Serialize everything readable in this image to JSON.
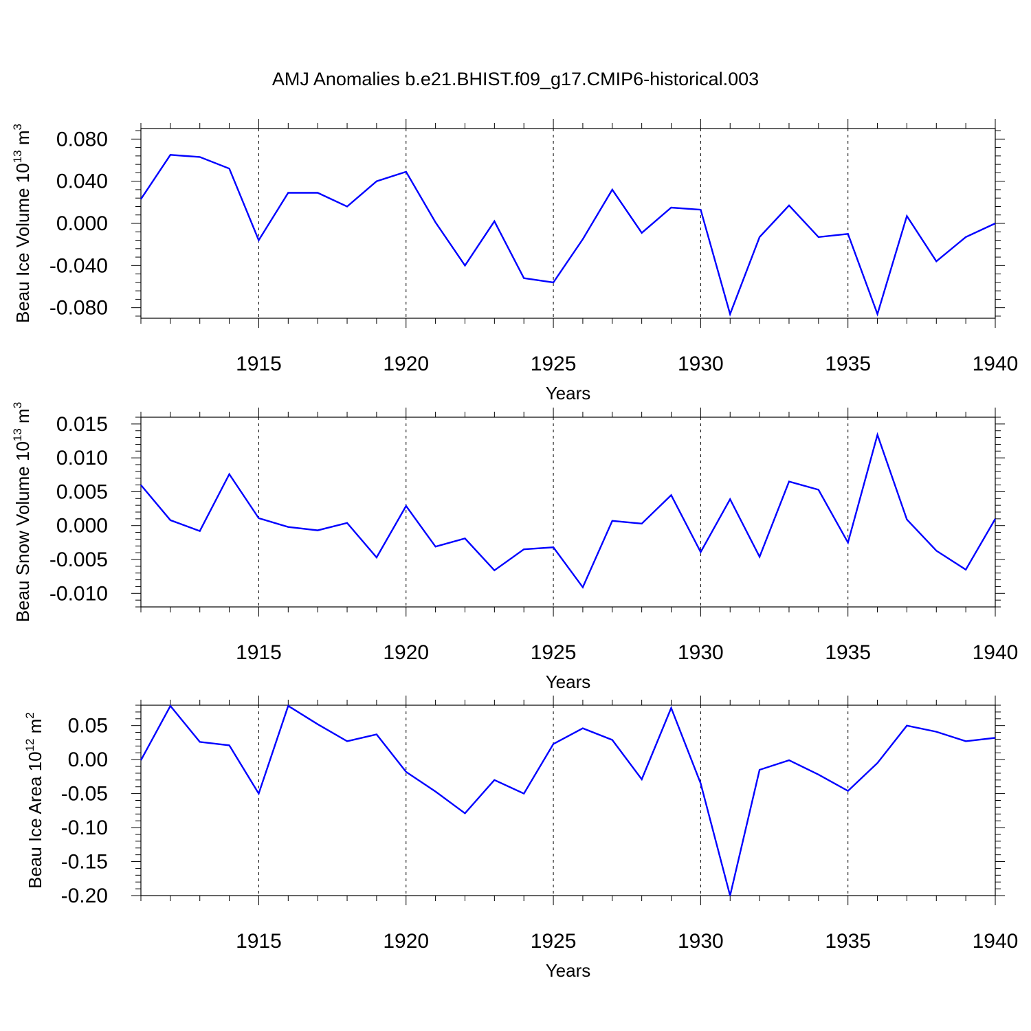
{
  "chart_data": {
    "title": "AMJ Anomalies b.e21.BHIST.f09_g17.CMIP6-historical.003",
    "line_color": "#0000ff",
    "panels": [
      {
        "type": "line",
        "ylabel": "Beau Ice Volume 10",
        "ylabel_unit_exp": "13",
        "ylabel_unit": "m",
        "ylabel_unit_power": "3",
        "xlabel": "Years",
        "xlim": [
          1911,
          1940
        ],
        "ylim": [
          -0.09,
          0.09
        ],
        "y_ticks": [
          -0.08,
          -0.04,
          0.0,
          0.04,
          0.08
        ],
        "y_tick_labels": [
          "-0.080",
          "-0.040",
          "0.000",
          "0.040",
          "0.080"
        ],
        "x": [
          1911,
          1912,
          1913,
          1914,
          1915,
          1916,
          1917,
          1918,
          1919,
          1920,
          1921,
          1922,
          1923,
          1924,
          1925,
          1926,
          1927,
          1928,
          1929,
          1930,
          1931,
          1932,
          1933,
          1934,
          1935,
          1936,
          1937,
          1938,
          1939,
          1940
        ],
        "values": [
          0.023,
          0.065,
          0.063,
          0.052,
          -0.016,
          0.029,
          0.029,
          0.016,
          0.04,
          0.049,
          0.001,
          -0.04,
          0.002,
          -0.052,
          -0.056,
          -0.015,
          0.032,
          -0.009,
          0.015,
          0.013,
          -0.086,
          -0.013,
          0.017,
          -0.013,
          -0.01,
          -0.086,
          0.007,
          -0.036,
          -0.013,
          0.0
        ]
      },
      {
        "type": "line",
        "ylabel": "Beau Snow Volume 10",
        "ylabel_unit_exp": "13",
        "ylabel_unit": "m",
        "ylabel_unit_power": "3",
        "xlabel": "Years",
        "xlim": [
          1911,
          1940
        ],
        "ylim": [
          -0.012,
          0.016
        ],
        "y_ticks": [
          -0.01,
          -0.005,
          0.0,
          0.005,
          0.01,
          0.015
        ],
        "y_tick_labels": [
          "-0.010",
          "-0.005",
          "0.000",
          "0.005",
          "0.010",
          "0.015"
        ],
        "x": [
          1911,
          1912,
          1913,
          1914,
          1915,
          1916,
          1917,
          1918,
          1919,
          1920,
          1921,
          1922,
          1923,
          1924,
          1925,
          1926,
          1927,
          1928,
          1929,
          1930,
          1931,
          1932,
          1933,
          1934,
          1935,
          1936,
          1937,
          1938,
          1939,
          1940
        ],
        "values": [
          0.006,
          0.0008,
          -0.0008,
          0.0076,
          0.0011,
          -0.0002,
          -0.0007,
          0.0004,
          -0.0047,
          0.0029,
          -0.0031,
          -0.0019,
          -0.0066,
          -0.0035,
          -0.0032,
          -0.0091,
          0.0007,
          0.0003,
          0.0045,
          -0.0039,
          0.0039,
          -0.0046,
          0.0065,
          0.0053,
          -0.0025,
          0.0134,
          0.0009,
          -0.0037,
          -0.0065,
          0.001
        ]
      },
      {
        "type": "line",
        "ylabel": "Beau Ice Area 10",
        "ylabel_unit_exp": "12",
        "ylabel_unit": "m",
        "ylabel_unit_power": "2",
        "xlabel": "Years",
        "xlim": [
          1911,
          1940
        ],
        "ylim": [
          -0.2,
          0.08
        ],
        "y_ticks": [
          -0.2,
          -0.15,
          -0.1,
          -0.05,
          0.0,
          0.05
        ],
        "y_tick_labels": [
          "-0.20",
          "-0.15",
          "-0.10",
          "-0.05",
          "0.00",
          "0.05"
        ],
        "x": [
          1911,
          1912,
          1913,
          1914,
          1915,
          1916,
          1917,
          1918,
          1919,
          1920,
          1921,
          1922,
          1923,
          1924,
          1925,
          1926,
          1927,
          1928,
          1929,
          1930,
          1931,
          1932,
          1933,
          1934,
          1935,
          1936,
          1937,
          1938,
          1939,
          1940
        ],
        "values": [
          -0.001,
          0.079,
          0.026,
          0.021,
          -0.05,
          0.079,
          0.052,
          0.027,
          0.037,
          -0.018,
          -0.047,
          -0.079,
          -0.03,
          -0.05,
          0.023,
          0.046,
          0.029,
          -0.029,
          0.076,
          -0.035,
          -0.2,
          -0.015,
          -0.001,
          -0.022,
          -0.046,
          -0.005,
          0.05,
          0.041,
          0.027,
          0.032
        ]
      }
    ],
    "x_major_ticks": [
      1915,
      1920,
      1925,
      1930,
      1935,
      1940
    ],
    "x_tick_labels": [
      "1915",
      "1920",
      "1925",
      "1930",
      "1935",
      "1940"
    ]
  }
}
